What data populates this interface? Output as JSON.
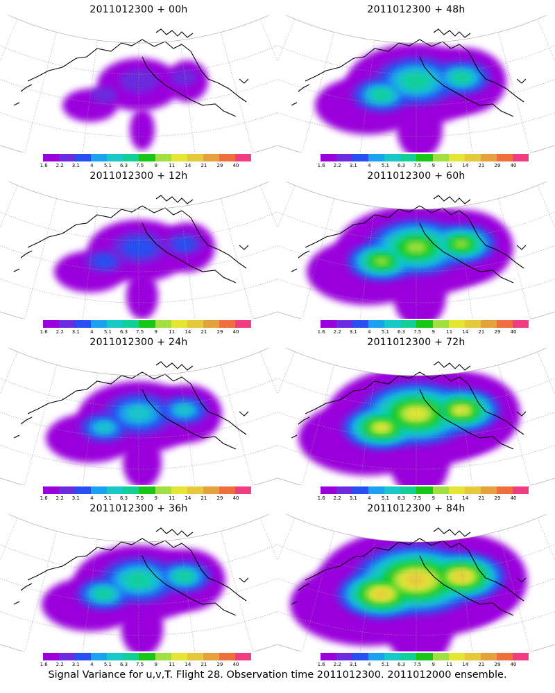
{
  "panels": [
    {
      "title": "2011012300 + 00h",
      "intensity": 0
    },
    {
      "title": "2011012300 + 48h",
      "intensity": 3
    },
    {
      "title": "2011012300 + 12h",
      "intensity": 1
    },
    {
      "title": "2011012300 + 60h",
      "intensity": 4
    },
    {
      "title": "2011012300 + 24h",
      "intensity": 2
    },
    {
      "title": "2011012300 + 72h",
      "intensity": 5
    },
    {
      "title": "2011012300 + 36h",
      "intensity": 2.5
    },
    {
      "title": "2011012300 + 84h",
      "intensity": 6
    }
  ],
  "colorbar": {
    "labels": [
      "1.6",
      "2.2",
      "3.1",
      "4",
      "5.1",
      "6.3",
      "7.5",
      "9",
      "11",
      "14",
      "21",
      "29",
      "40"
    ],
    "colors": [
      "#9a00dc",
      "#6a2cdc",
      "#2850f0",
      "#1aa0f0",
      "#18c8c8",
      "#10d096",
      "#18c818",
      "#a0e040",
      "#e6e632",
      "#e6c83c",
      "#e6a03c",
      "#f06e3c",
      "#f03c82"
    ]
  },
  "caption": "Signal Variance for u,v,T. Flight 28. Observation time 2011012300. 2011012000 ensemble."
}
